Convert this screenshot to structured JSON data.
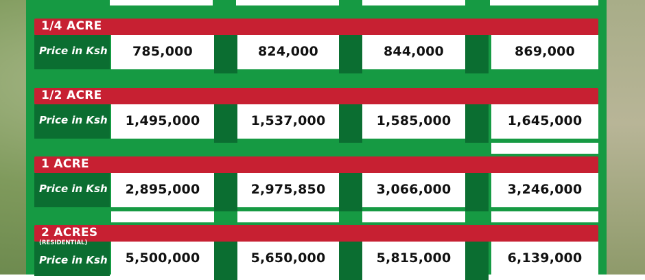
{
  "price_label": "Price in Ksh",
  "rows": [
    {
      "plot": "1/4 ACRE",
      "note": "",
      "prices": [
        "785,000",
        "824,000",
        "844,000",
        "869,000"
      ]
    },
    {
      "plot": "1/2 ACRE",
      "note": "",
      "prices": [
        "1,495,000",
        "1,537,000",
        "1,585,000",
        "1,645,000"
      ]
    },
    {
      "plot": "1 ACRE",
      "note": "",
      "prices": [
        "2,895,000",
        "2,975,850",
        "3,066,000",
        "3,246,000"
      ]
    },
    {
      "plot": "2 ACRES",
      "note": "(RESIDENTIAL)",
      "prices": [
        "5,500,000",
        "5,650,000",
        "5,815,000",
        "6,139,000"
      ]
    }
  ],
  "colors": {
    "panel_green": "#169a43",
    "dark_green": "#0b6e31",
    "red_band": "#c72032",
    "cell_white": "#ffffff"
  }
}
